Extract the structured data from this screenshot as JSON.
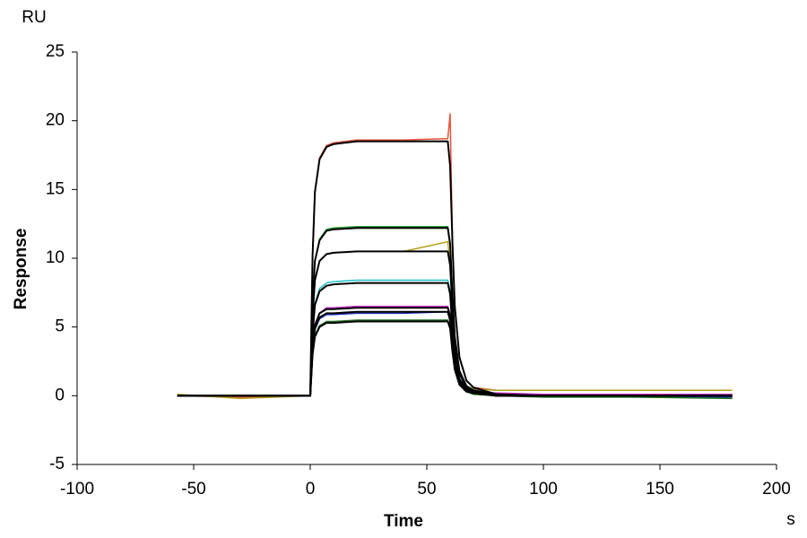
{
  "chart_data": {
    "type": "line",
    "xlabel": "Time",
    "ylabel": "Response",
    "y_unit": "RU",
    "x_unit": "s",
    "x": [
      -57,
      -30,
      0,
      1,
      2,
      4,
      7,
      10,
      20,
      40,
      59,
      60,
      61,
      62,
      64,
      67,
      70,
      80,
      100,
      140,
      181
    ],
    "series": [
      {
        "color": "#e8543c",
        "values": [
          0,
          -0.1,
          0,
          10.2,
          14.9,
          17.3,
          18.2,
          18.4,
          18.6,
          18.6,
          18.7,
          20.5,
          11.2,
          6.5,
          2.8,
          1.1,
          0.6,
          0.4,
          0.4,
          0.4,
          0.4
        ]
      },
      {
        "color": "#2ca02c",
        "values": [
          0,
          0,
          0,
          6.8,
          9.8,
          11.4,
          12.1,
          12.2,
          12.3,
          12.3,
          12.3,
          11.1,
          7.4,
          4.3,
          1.8,
          0.7,
          0.3,
          0.1,
          0,
          -0.1,
          -0.1
        ]
      },
      {
        "color": "#b8a020",
        "values": [
          0.1,
          -0.2,
          0,
          5.8,
          8.4,
          9.8,
          10.3,
          10.4,
          10.5,
          10.5,
          11.2,
          9.5,
          6.3,
          3.7,
          1.6,
          0.7,
          0.5,
          0.4,
          0.4,
          0.4,
          0.4
        ]
      },
      {
        "color": "#20c0d0",
        "values": [
          0,
          0,
          0,
          4.6,
          6.7,
          7.8,
          8.2,
          8.3,
          8.4,
          8.4,
          8.4,
          7.6,
          5,
          2.9,
          1.3,
          0.5,
          0.3,
          0.2,
          0.1,
          0.1,
          0.1
        ]
      },
      {
        "color": "#d030d0",
        "values": [
          0,
          0,
          0,
          3.6,
          5.2,
          6,
          6.4,
          6.4,
          6.5,
          6.5,
          6.5,
          5.9,
          3.9,
          2.3,
          1,
          0.4,
          0.2,
          0.2,
          0.1,
          0.1,
          0.1
        ]
      },
      {
        "color": "#2030c0",
        "values": [
          0,
          0,
          0,
          3.3,
          4.8,
          5.6,
          5.9,
          5.9,
          6,
          6,
          6.1,
          5.4,
          3.6,
          2.1,
          0.9,
          0.4,
          0.2,
          0.1,
          0,
          0,
          -0.1
        ]
      },
      {
        "color": "#207020",
        "values": [
          0,
          0,
          0,
          3,
          4.4,
          5.1,
          5.4,
          5.4,
          5.5,
          5.5,
          5.5,
          5,
          3.3,
          1.9,
          0.8,
          0.3,
          0.1,
          0,
          -0.1,
          -0.1,
          -0.2
        ]
      },
      {
        "color": "#000000",
        "values": [
          0,
          0,
          0,
          10.2,
          14.8,
          17.2,
          18.1,
          18.3,
          18.5,
          18.5,
          18.5,
          16.7,
          11.1,
          6.5,
          2.8,
          1.1,
          0.6,
          0.1,
          0,
          0,
          0
        ]
      },
      {
        "color": "#000000",
        "values": [
          0,
          0,
          0,
          6.7,
          9.8,
          11.3,
          12,
          12.1,
          12.2,
          12.2,
          12.2,
          11,
          7.3,
          4.3,
          1.8,
          0.7,
          0.4,
          0.1,
          0,
          0,
          0
        ]
      },
      {
        "color": "#000000",
        "values": [
          0,
          0,
          0,
          5.8,
          8.4,
          9.8,
          10.3,
          10.4,
          10.5,
          10.5,
          10.5,
          9.5,
          6.3,
          3.7,
          1.6,
          0.6,
          0.3,
          0.1,
          0,
          0,
          0
        ]
      },
      {
        "color": "#000000",
        "values": [
          0,
          0,
          0,
          4.5,
          6.6,
          7.6,
          8,
          8.1,
          8.2,
          8.2,
          8.2,
          7.4,
          4.9,
          2.9,
          1.2,
          0.5,
          0.2,
          0,
          0,
          0,
          0
        ]
      },
      {
        "color": "#000000",
        "values": [
          0,
          0,
          0,
          3.5,
          5.1,
          6,
          6.3,
          6.3,
          6.4,
          6.4,
          6.4,
          5.8,
          3.8,
          2.2,
          1,
          0.4,
          0.2,
          0,
          0,
          0,
          0
        ]
      },
      {
        "color": "#000000",
        "values": [
          0,
          0,
          0,
          3.4,
          4.9,
          5.7,
          6,
          6,
          6.1,
          6.1,
          6.1,
          5.5,
          3.7,
          2.1,
          0.9,
          0.4,
          0.2,
          0,
          0,
          0,
          0
        ]
      },
      {
        "color": "#000000",
        "values": [
          0,
          0,
          0,
          3,
          4.3,
          5,
          5.3,
          5.3,
          5.4,
          5.4,
          5.4,
          4.9,
          3.2,
          1.9,
          0.8,
          0.3,
          0.2,
          0,
          0,
          0,
          0
        ]
      }
    ],
    "xlim": [
      -100,
      200
    ],
    "xticks": [
      -100,
      -50,
      0,
      50,
      100,
      150,
      200
    ],
    "ylim": [
      -5,
      25
    ],
    "yticks": [
      -5,
      0,
      5,
      10,
      15,
      20,
      25
    ]
  }
}
